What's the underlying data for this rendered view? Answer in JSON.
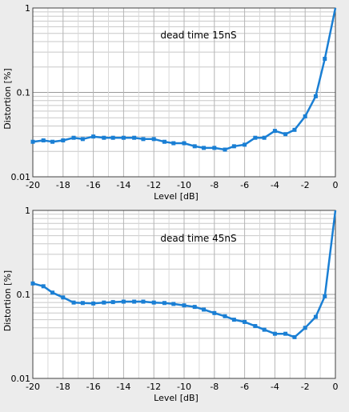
{
  "chart_data": [
    {
      "type": "line",
      "title": "",
      "annotation": "dead time 15nS",
      "xlabel": "Level [dB]",
      "ylabel": "Distortion [%]",
      "xlim": [
        -20,
        0
      ],
      "ylim": [
        0.01,
        1
      ],
      "yscale": "log",
      "grid": true,
      "x_ticks": [
        "-20",
        "-18",
        "-16",
        "-14",
        "-12",
        "-10",
        "-8",
        "-6",
        "-4",
        "-2",
        "0"
      ],
      "y_ticks": [
        "0.01",
        "0.1",
        "1"
      ],
      "series_color": "#1a7fd4",
      "series": [
        {
          "name": "",
          "x": [
            -20,
            -19.3,
            -18.7,
            -18,
            -17.3,
            -16.7,
            -16,
            -15.3,
            -14.7,
            -14,
            -13.3,
            -12.7,
            -12,
            -11.3,
            -10.7,
            -10,
            -9.3,
            -8.7,
            -8,
            -7.3,
            -6.7,
            -6,
            -5.3,
            -4.7,
            -4,
            -3.3,
            -2.7,
            -2,
            -1.3,
            -0.7,
            0
          ],
          "y": [
            0.026,
            0.027,
            0.026,
            0.027,
            0.029,
            0.028,
            0.03,
            0.029,
            0.029,
            0.029,
            0.029,
            0.028,
            0.028,
            0.026,
            0.025,
            0.025,
            0.023,
            0.022,
            0.022,
            0.021,
            0.023,
            0.024,
            0.029,
            0.029,
            0.035,
            0.032,
            0.036,
            0.052,
            0.09,
            0.25,
            1.0
          ]
        }
      ]
    },
    {
      "type": "line",
      "title": "",
      "annotation": "dead time 45nS",
      "xlabel": "Level [dB]",
      "ylabel": "Distortion [%]",
      "xlim": [
        -20,
        0
      ],
      "ylim": [
        0.01,
        1
      ],
      "yscale": "log",
      "grid": true,
      "x_ticks": [
        "-20",
        "-18",
        "-16",
        "-14",
        "-12",
        "-10",
        "-8",
        "-6",
        "-4",
        "-2",
        "0"
      ],
      "y_ticks": [
        "0.01",
        "0.1",
        "1"
      ],
      "series_color": "#1a7fd4",
      "series": [
        {
          "name": "",
          "x": [
            -20,
            -19.3,
            -18.7,
            -18,
            -17.3,
            -16.7,
            -16,
            -15.3,
            -14.7,
            -14,
            -13.3,
            -12.7,
            -12,
            -11.3,
            -10.7,
            -10,
            -9.3,
            -8.7,
            -8,
            -7.3,
            -6.7,
            -6,
            -5.3,
            -4.7,
            -4,
            -3.3,
            -2.7,
            -2,
            -1.3,
            -0.7,
            0
          ],
          "y": [
            0.135,
            0.125,
            0.105,
            0.092,
            0.08,
            0.079,
            0.078,
            0.08,
            0.081,
            0.082,
            0.082,
            0.082,
            0.08,
            0.079,
            0.077,
            0.074,
            0.071,
            0.066,
            0.06,
            0.055,
            0.05,
            0.047,
            0.042,
            0.038,
            0.034,
            0.034,
            0.031,
            0.04,
            0.054,
            0.095,
            1.0
          ]
        }
      ]
    }
  ]
}
